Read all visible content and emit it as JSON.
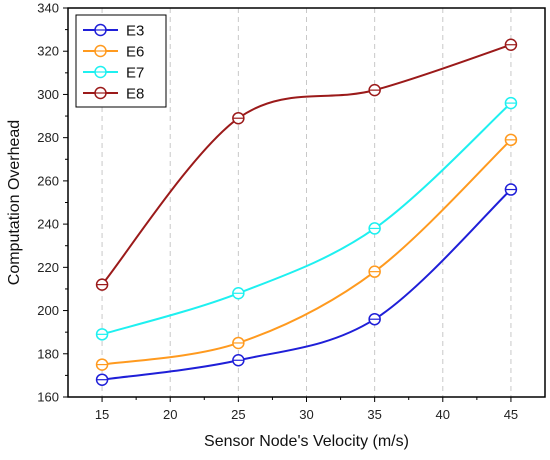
{
  "chart_data": {
    "type": "line",
    "title": "",
    "xlabel": "Sensor Node's Velocity (m/s)",
    "ylabel": "Computation Overhead",
    "x": [
      15,
      25,
      35,
      45
    ],
    "xlim": [
      12.5,
      47.5
    ],
    "ylim": [
      160,
      340
    ],
    "xticks": [
      15,
      20,
      25,
      30,
      35,
      40,
      45
    ],
    "yticks": [
      160,
      180,
      200,
      220,
      240,
      260,
      280,
      300,
      320,
      340
    ],
    "grid": "vertical-dashed",
    "legend_position": "top-left",
    "series": [
      {
        "name": "E3",
        "color": "#1f1fd8",
        "values": [
          168,
          177,
          196,
          256
        ]
      },
      {
        "name": "E6",
        "color": "#ff9a1f",
        "values": [
          175,
          185,
          218,
          279
        ]
      },
      {
        "name": "E7",
        "color": "#1ef0f0",
        "values": [
          189,
          208,
          238,
          296
        ]
      },
      {
        "name": "E8",
        "color": "#9b1a1a",
        "values": [
          212,
          289,
          302,
          323
        ]
      }
    ]
  }
}
